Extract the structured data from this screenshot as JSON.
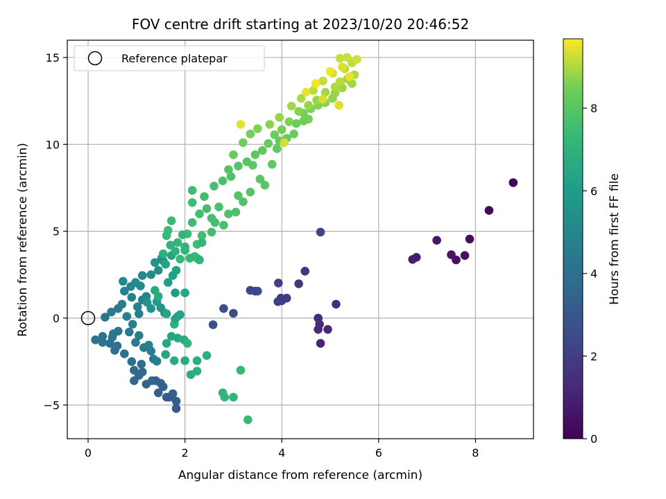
{
  "chart_data": {
    "type": "scatter",
    "title": "FOV centre drift starting at 2023/10/20 20:46:52",
    "xlabel": "Angular distance from reference (arcmin)",
    "ylabel": "Rotation from reference (arcmin)",
    "xlim": [
      -0.45,
      9.2
    ],
    "ylim": [
      -6.95,
      16.1
    ],
    "xticks": [
      0,
      2,
      4,
      6,
      8
    ],
    "yticks": [
      -5,
      0,
      5,
      10,
      15
    ],
    "xtick_labels": [
      "0",
      "2",
      "4",
      "6",
      "8"
    ],
    "ytick_labels": [
      "−5",
      "0",
      "5",
      "10",
      "15"
    ],
    "grid": true,
    "legend": {
      "placement": "top-left",
      "entries": [
        {
          "label": "Reference platepar",
          "marker": "open-circle"
        }
      ]
    },
    "reference_point": {
      "x": 0,
      "y": 0
    },
    "colorbar": {
      "label": "Hours from first FF file",
      "colormap": "viridis",
      "range": [
        0,
        9.68
      ],
      "ticks": [
        0,
        2,
        4,
        6,
        8
      ],
      "tick_labels": [
        "0",
        "2",
        "4",
        "6",
        "8"
      ]
    },
    "points": [
      [
        8.78,
        7.8,
        0.1
      ],
      [
        8.28,
        6.2,
        0.25
      ],
      [
        7.88,
        4.55,
        0.4
      ],
      [
        7.78,
        3.6,
        0.5
      ],
      [
        7.6,
        3.35,
        0.55
      ],
      [
        7.5,
        3.65,
        0.6
      ],
      [
        7.2,
        4.48,
        0.7
      ],
      [
        6.78,
        3.5,
        0.8
      ],
      [
        6.7,
        3.38,
        0.85
      ],
      [
        4.8,
        -1.45,
        1.1
      ],
      [
        4.75,
        0.0,
        1.2
      ],
      [
        4.95,
        -0.65,
        1.25
      ],
      [
        4.78,
        -0.35,
        1.3
      ],
      [
        4.75,
        -0.65,
        1.35
      ],
      [
        5.12,
        0.8,
        1.5
      ],
      [
        4.48,
        2.7,
        1.7
      ],
      [
        4.35,
        1.98,
        1.8
      ],
      [
        4.1,
        1.15,
        1.9
      ],
      [
        3.98,
        1.15,
        1.95
      ],
      [
        3.92,
        0.95,
        2.0
      ],
      [
        4.0,
        1.0,
        2.05
      ],
      [
        3.93,
        2.02,
        2.1
      ],
      [
        4.8,
        4.95,
        2.2
      ],
      [
        3.45,
        1.55,
        2.3
      ],
      [
        3.5,
        1.55,
        2.35
      ],
      [
        3.35,
        1.6,
        2.4
      ],
      [
        3.0,
        0.28,
        2.5
      ],
      [
        2.8,
        0.55,
        2.6
      ],
      [
        2.58,
        -0.38,
        2.7
      ],
      [
        1.82,
        -5.2,
        3.0
      ],
      [
        1.82,
        -4.78,
        3.05
      ],
      [
        1.68,
        -4.55,
        3.1
      ],
      [
        1.62,
        -4.55,
        3.15
      ],
      [
        1.75,
        -4.35,
        3.2
      ],
      [
        1.45,
        -4.3,
        3.3
      ],
      [
        1.5,
        -3.75,
        3.35
      ],
      [
        1.55,
        -3.95,
        3.4
      ],
      [
        1.4,
        -3.6,
        3.45
      ],
      [
        1.2,
        -3.8,
        3.5
      ],
      [
        1.32,
        -3.6,
        3.55
      ],
      [
        0.95,
        -3.6,
        3.6
      ],
      [
        1.05,
        -3.3,
        3.65
      ],
      [
        0.95,
        -3.0,
        3.7
      ],
      [
        1.12,
        -3.1,
        3.75
      ],
      [
        1.1,
        -2.65,
        3.8
      ],
      [
        0.9,
        -2.5,
        3.85
      ],
      [
        0.75,
        -2.05,
        3.9
      ],
      [
        0.55,
        -1.85,
        3.95
      ],
      [
        0.6,
        -1.6,
        4.0
      ],
      [
        0.45,
        -1.45,
        4.05
      ],
      [
        0.3,
        -1.4,
        4.1
      ],
      [
        0.15,
        -1.25,
        4.15
      ],
      [
        0.3,
        -1.05,
        4.2
      ],
      [
        0.5,
        -1.1,
        4.25
      ],
      [
        0.52,
        -0.9,
        4.3
      ],
      [
        0.62,
        -0.75,
        4.35
      ],
      [
        0.85,
        -0.8,
        4.4
      ],
      [
        0.98,
        -1.4,
        4.45
      ],
      [
        1.05,
        -1.0,
        4.5
      ],
      [
        1.15,
        -1.7,
        4.55
      ],
      [
        1.25,
        -1.55,
        4.6
      ],
      [
        1.35,
        -2.35,
        4.65
      ],
      [
        1.42,
        -2.48,
        4.7
      ],
      [
        1.3,
        -1.9,
        4.75
      ],
      [
        0.35,
        0.05,
        4.3
      ],
      [
        0.48,
        0.35,
        4.4
      ],
      [
        0.62,
        0.55,
        4.5
      ],
      [
        0.7,
        0.8,
        4.55
      ],
      [
        0.8,
        0.1,
        4.6
      ],
      [
        0.92,
        -0.35,
        4.65
      ],
      [
        1.05,
        0.25,
        4.7
      ],
      [
        1.02,
        0.65,
        4.75
      ],
      [
        1.12,
        1.05,
        4.8
      ],
      [
        1.2,
        1.25,
        4.85
      ],
      [
        0.9,
        1.2,
        4.9
      ],
      [
        0.75,
        1.55,
        4.95
      ],
      [
        0.88,
        1.82,
        5.0
      ],
      [
        1.08,
        1.85,
        5.05
      ],
      [
        1.12,
        2.45,
        5.1
      ],
      [
        0.72,
        2.12,
        5.15
      ],
      [
        0.98,
        2.05,
        5.2
      ],
      [
        1.3,
        2.5,
        5.3
      ],
      [
        1.45,
        2.75,
        5.4
      ],
      [
        1.38,
        3.2,
        5.45
      ],
      [
        1.52,
        3.45,
        5.5
      ],
      [
        1.55,
        3.3,
        5.55
      ],
      [
        1.22,
        0.9,
        5.6
      ],
      [
        1.3,
        0.55,
        5.65
      ],
      [
        1.5,
        0.6,
        5.7
      ],
      [
        1.58,
        0.3,
        5.75
      ],
      [
        1.42,
        0.95,
        5.8
      ],
      [
        1.8,
        1.45,
        6.0
      ],
      [
        1.65,
        2.05,
        6.1
      ],
      [
        1.75,
        2.45,
        6.2
      ],
      [
        1.82,
        2.75,
        6.25
      ],
      [
        1.6,
        3.1,
        6.3
      ],
      [
        1.72,
        3.6,
        6.35
      ],
      [
        1.72,
        -1.05,
        6.4
      ],
      [
        1.6,
        -2.1,
        6.45
      ],
      [
        1.62,
        -1.45,
        6.5
      ],
      [
        1.85,
        -1.15,
        6.55
      ],
      [
        1.98,
        -1.25,
        6.6
      ],
      [
        1.78,
        -2.45,
        6.65
      ],
      [
        2.0,
        -2.45,
        6.7
      ],
      [
        2.12,
        -3.25,
        6.75
      ],
      [
        2.25,
        -2.45,
        6.8
      ],
      [
        2.25,
        -3.05,
        6.85
      ],
      [
        2.45,
        -2.15,
        6.9
      ],
      [
        1.78,
        -0.35,
        6.95
      ],
      [
        1.85,
        0.1,
        7.0
      ],
      [
        2.05,
        -1.45,
        7.05
      ],
      [
        2.78,
        -4.3,
        7.1
      ],
      [
        2.82,
        -4.55,
        7.15
      ],
      [
        3.0,
        -4.55,
        7.2
      ],
      [
        3.15,
        -3.0,
        7.25
      ],
      [
        3.3,
        -5.85,
        7.3
      ],
      [
        1.9,
        3.4,
        7.3
      ],
      [
        2.2,
        3.55,
        7.35
      ],
      [
        2.25,
        3.45,
        7.4
      ],
      [
        2.05,
        4.85,
        7.45
      ],
      [
        2.25,
        4.25,
        7.5
      ],
      [
        2.35,
        4.75,
        7.55
      ],
      [
        2.55,
        4.95,
        7.6
      ],
      [
        2.62,
        5.5,
        7.65
      ],
      [
        2.8,
        5.35,
        7.7
      ],
      [
        2.9,
        6.0,
        7.75
      ],
      [
        3.05,
        6.1,
        7.8
      ],
      [
        3.2,
        6.7,
        7.85
      ],
      [
        3.1,
        7.05,
        7.9
      ],
      [
        3.35,
        7.25,
        7.95
      ],
      [
        3.55,
        8.0,
        8.0
      ],
      [
        3.65,
        7.65,
        8.05
      ],
      [
        3.4,
        8.8,
        8.1
      ],
      [
        3.8,
        8.85,
        8.15
      ],
      [
        3.9,
        9.75,
        8.2
      ],
      [
        3.95,
        10.2,
        8.25
      ],
      [
        4.1,
        10.35,
        8.3
      ],
      [
        4.25,
        10.6,
        8.35
      ],
      [
        4.3,
        11.2,
        8.4
      ],
      [
        4.45,
        11.35,
        8.45
      ],
      [
        4.55,
        11.45,
        8.5
      ],
      [
        4.45,
        11.8,
        8.55
      ],
      [
        4.6,
        12.05,
        8.6
      ],
      [
        4.75,
        12.25,
        8.65
      ],
      [
        4.9,
        12.4,
        8.7
      ],
      [
        5.05,
        12.65,
        8.75
      ],
      [
        5.1,
        12.95,
        8.8
      ],
      [
        5.25,
        13.25,
        8.85
      ],
      [
        5.45,
        13.5,
        8.9
      ],
      [
        5.35,
        13.75,
        8.95
      ],
      [
        5.5,
        14.0,
        9.0
      ],
      [
        5.3,
        14.35,
        9.05
      ],
      [
        5.45,
        14.7,
        9.1
      ],
      [
        5.2,
        14.95,
        9.2
      ],
      [
        5.35,
        15.0,
        9.25
      ],
      [
        5.55,
        14.9,
        9.3
      ],
      [
        2.15,
        7.35,
        7.5
      ],
      [
        2.4,
        7.0,
        7.6
      ],
      [
        2.6,
        7.6,
        7.7
      ],
      [
        2.78,
        7.9,
        7.8
      ],
      [
        2.95,
        8.15,
        7.85
      ],
      [
        2.9,
        8.55,
        7.9
      ],
      [
        3.1,
        8.75,
        7.95
      ],
      [
        3.28,
        9.0,
        8.0
      ],
      [
        3.45,
        9.4,
        8.1
      ],
      [
        3.6,
        9.65,
        8.15
      ],
      [
        3.72,
        10.05,
        8.3
      ],
      [
        3.85,
        10.55,
        8.4
      ],
      [
        4.0,
        10.85,
        8.5
      ],
      [
        4.15,
        11.3,
        8.6
      ],
      [
        4.35,
        11.9,
        8.7
      ],
      [
        4.55,
        12.25,
        8.8
      ],
      [
        4.72,
        12.55,
        8.85
      ],
      [
        4.9,
        13.0,
        8.95
      ],
      [
        5.1,
        13.3,
        9.0
      ],
      [
        5.2,
        13.6,
        9.1
      ],
      [
        3.0,
        9.4,
        8.3
      ],
      [
        3.2,
        10.1,
        8.4
      ],
      [
        3.35,
        10.6,
        8.5
      ],
      [
        3.5,
        10.9,
        8.6
      ],
      [
        3.75,
        11.15,
        8.7
      ],
      [
        3.95,
        11.55,
        8.8
      ],
      [
        4.2,
        12.2,
        8.9
      ],
      [
        4.4,
        12.65,
        9.0
      ],
      [
        4.65,
        13.1,
        9.1
      ],
      [
        4.85,
        13.65,
        9.2
      ],
      [
        5.05,
        14.1,
        9.3
      ],
      [
        5.25,
        14.45,
        9.4
      ],
      [
        3.15,
        11.15,
        9.45
      ],
      [
        4.05,
        10.1,
        9.3
      ],
      [
        4.85,
        12.6,
        9.35
      ],
      [
        5.18,
        12.25,
        9.4
      ],
      [
        5.4,
        13.9,
        9.5
      ],
      [
        5.0,
        14.2,
        9.55
      ],
      [
        4.7,
        13.5,
        9.6
      ],
      [
        4.5,
        13.0,
        9.5
      ],
      [
        2.45,
        6.3,
        7.6
      ],
      [
        2.3,
        6.0,
        7.55
      ],
      [
        2.55,
        5.75,
        7.65
      ],
      [
        2.7,
        6.4,
        7.7
      ],
      [
        2.15,
        5.5,
        7.5
      ],
      [
        1.72,
        5.6,
        7.4
      ],
      [
        1.65,
        5.05,
        7.4
      ],
      [
        1.62,
        4.75,
        7.35
      ],
      [
        2.15,
        6.65,
        7.45
      ],
      [
        1.95,
        4.8,
        7.25
      ],
      [
        1.85,
        4.35,
        7.2
      ],
      [
        2.0,
        3.9,
        7.15
      ],
      [
        2.35,
        4.35,
        7.25
      ],
      [
        2.1,
        3.45,
        7.2
      ],
      [
        2.0,
        4.1,
        7.1
      ],
      [
        1.7,
        4.2,
        7.0
      ],
      [
        1.8,
        3.85,
        6.95
      ],
      [
        1.55,
        3.7,
        6.9
      ],
      [
        1.45,
        1.25,
        6.7
      ],
      [
        1.38,
        1.6,
        6.6
      ],
      [
        2.0,
        1.45,
        6.5
      ],
      [
        1.62,
        0.25,
        6.4
      ],
      [
        1.8,
        -0.05,
        6.3
      ],
      [
        1.9,
        0.2,
        6.35
      ],
      [
        2.3,
        3.35,
        7.05
      ]
    ]
  }
}
